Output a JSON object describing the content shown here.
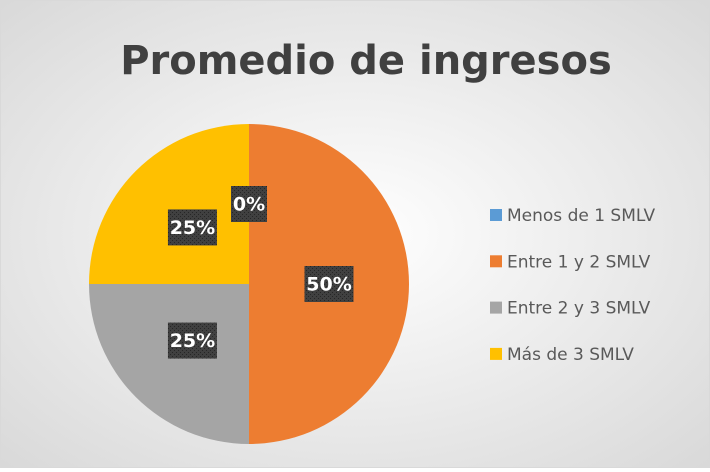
{
  "chart_data": {
    "type": "pie",
    "title": "Promedio de ingresos",
    "categories": [
      "Menos de 1 SMLV",
      "Entre 1 y 2 SMLV",
      "Entre 2 y 3 SMLV",
      "Más de 3 SMLV"
    ],
    "values": [
      0,
      50,
      25,
      25
    ],
    "value_labels": [
      "0%",
      "50%",
      "25%",
      "25%"
    ],
    "colors": [
      "#5b9bd5",
      "#ed7d31",
      "#a5a5a5",
      "#ffc000"
    ],
    "legend": "right"
  }
}
